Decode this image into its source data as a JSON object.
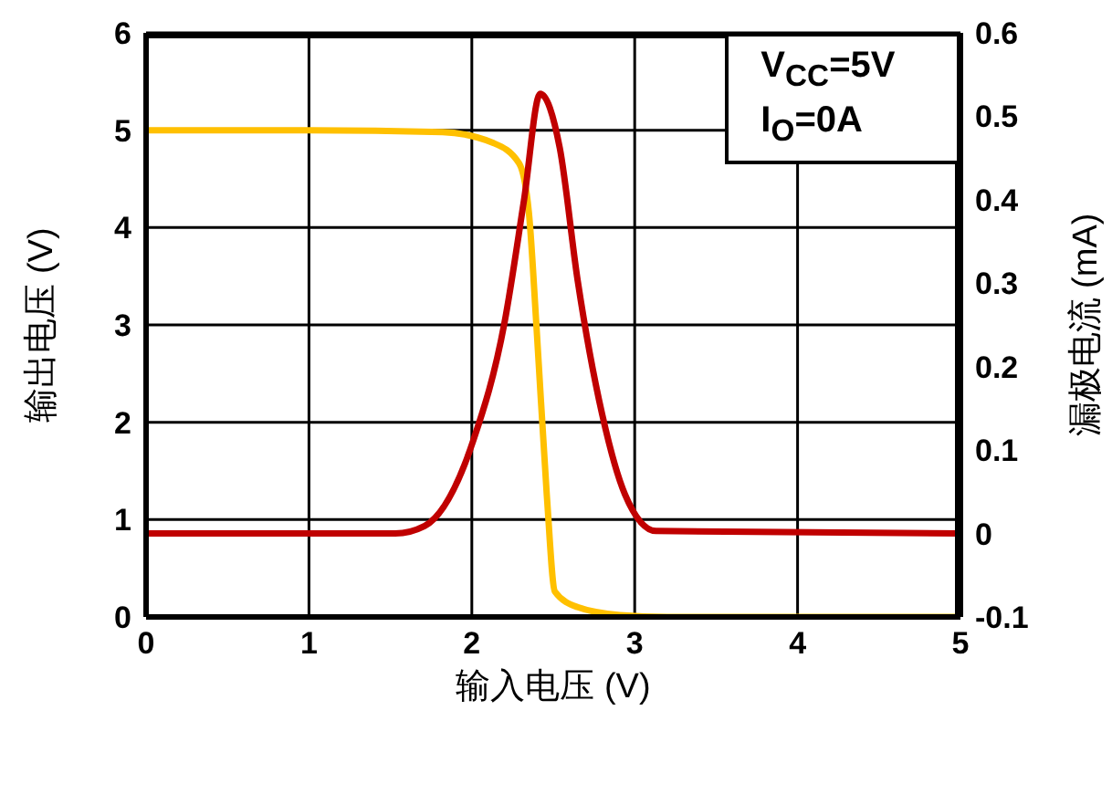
{
  "chart_data": {
    "type": "line",
    "xlabel": "输入电压 (V)",
    "ylabel": "输出电压 (V)",
    "y2label": "漏极电流 (mA)",
    "annotations": [
      "V$_{CC}$=5V",
      "I$_{O}$=0A"
    ],
    "series": [
      {
        "color": "#ffc000",
        "x": [
          0,
          1.0,
          1.82,
          2.13,
          2.29,
          2.35,
          2.4,
          2.46,
          2.51,
          2.65,
          2.91,
          3.2,
          5
        ],
        "values": [
          5,
          5,
          4.98,
          4.87,
          4.66,
          4.16,
          2.9,
          1.26,
          0.26,
          0.1,
          0.02,
          0,
          0
        ]
      },
      {
        "color": "#c00000",
        "axis": "y2",
        "x": [
          0,
          1.53,
          1.71,
          2.01,
          2.2,
          2.32,
          2.42,
          2.54,
          2.65,
          2.8,
          2.94,
          3.13,
          5
        ],
        "values": [
          0,
          0,
          0.009,
          0.112,
          0.252,
          0.399,
          0.527,
          0.462,
          0.303,
          0.143,
          0.047,
          0.003,
          0
        ]
      }
    ],
    "xlim": [
      0,
      5
    ],
    "xticks": [
      0,
      1,
      2,
      3,
      4,
      5
    ],
    "ylim": [
      0,
      6
    ],
    "yticks": [
      0,
      1,
      2,
      3,
      4,
      5,
      6
    ],
    "y2lim": [
      -0.1,
      0.6
    ],
    "y2ticks": [
      -0.1,
      0,
      0.1,
      0.2,
      0.3,
      0.4,
      0.5,
      0.6
    ],
    "grid": true
  }
}
